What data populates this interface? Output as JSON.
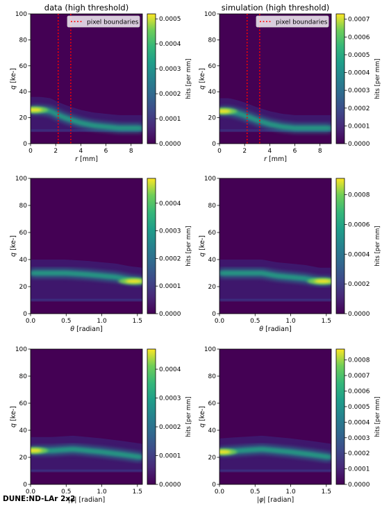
{
  "footer": "DUNE:ND-LAr 2x2",
  "colors": {
    "background": "#440154",
    "boundary": "#ff0000"
  },
  "legend_label": "pixel boundaries",
  "chart_data": [
    {
      "type": "heatmap",
      "title": "data (high threshold)",
      "xlabel": "r [mm]",
      "ylabel": "q [ke-]",
      "xlim": [
        0,
        8.9
      ],
      "ylim": [
        0,
        100
      ],
      "xticks": [
        "0",
        "2",
        "4",
        "6",
        "8"
      ],
      "xtick_values": [
        0,
        2,
        4,
        6,
        8
      ],
      "yticks": [
        "0",
        "20",
        "40",
        "60",
        "80",
        "100"
      ],
      "ytick_values": [
        0,
        20,
        40,
        60,
        80,
        100
      ],
      "colorbar": {
        "label": "hits [per mm]",
        "max": 0.00052,
        "ticks": [
          "0.0000",
          "0.0001",
          "0.0002",
          "0.0003",
          "0.0004",
          "0.0005"
        ],
        "tick_values": [
          0,
          0.0001,
          0.0002,
          0.0003,
          0.0004,
          0.0005
        ]
      },
      "pixel_boundaries": [
        2.2,
        3.2
      ],
      "legend": "pixel boundaries",
      "ridge": [
        [
          0,
          26
        ],
        [
          0.8,
          26
        ],
        [
          1.6,
          25
        ],
        [
          2.2,
          22
        ],
        [
          3.0,
          19
        ],
        [
          4.0,
          16
        ],
        [
          5.0,
          14
        ],
        [
          6.0,
          13
        ],
        [
          7.0,
          12
        ],
        [
          8.0,
          12
        ],
        [
          8.9,
          12
        ]
      ],
      "peak": [
        0.3,
        26
      ]
    },
    {
      "type": "heatmap",
      "title": "simulation (high threshold)",
      "xlabel": "r [mm]",
      "ylabel": "q [ke-]",
      "xlim": [
        0,
        8.9
      ],
      "ylim": [
        0,
        100
      ],
      "xticks": [
        "0",
        "2",
        "4",
        "6",
        "8"
      ],
      "xtick_values": [
        0,
        2,
        4,
        6,
        8
      ],
      "yticks": [
        "0",
        "20",
        "40",
        "60",
        "80",
        "100"
      ],
      "ytick_values": [
        0,
        20,
        40,
        60,
        80,
        100
      ],
      "colorbar": {
        "label": "hits [per mm]",
        "max": 0.00073,
        "ticks": [
          "0.0000",
          "0.0001",
          "0.0002",
          "0.0003",
          "0.0004",
          "0.0005",
          "0.0006",
          "0.0007"
        ],
        "tick_values": [
          0,
          0.0001,
          0.0002,
          0.0003,
          0.0004,
          0.0005,
          0.0006,
          0.0007
        ]
      },
      "pixel_boundaries": [
        2.2,
        3.2
      ],
      "legend": "pixel boundaries",
      "ridge": [
        [
          0,
          25
        ],
        [
          0.8,
          25
        ],
        [
          1.6,
          23
        ],
        [
          2.2,
          21
        ],
        [
          3.0,
          18
        ],
        [
          4.0,
          15
        ],
        [
          5.0,
          13
        ],
        [
          6.0,
          12
        ],
        [
          7.0,
          12
        ],
        [
          8.0,
          12
        ],
        [
          8.9,
          12
        ]
      ],
      "peak": [
        0.3,
        25
      ]
    },
    {
      "type": "heatmap",
      "title": "",
      "xlabel": "θ [radian]",
      "ylabel": "q [ke-]",
      "xlim": [
        0,
        1.57
      ],
      "ylim": [
        0,
        100
      ],
      "xticks": [
        "0.0",
        "0.5",
        "1.0",
        "1.5"
      ],
      "xtick_values": [
        0,
        0.5,
        1.0,
        1.5
      ],
      "yticks": [
        "0",
        "20",
        "40",
        "60",
        "80",
        "100"
      ],
      "ytick_values": [
        0,
        20,
        40,
        60,
        80,
        100
      ],
      "colorbar": {
        "label": "hits [per mm]",
        "max": 0.00049,
        "ticks": [
          "0.0000",
          "0.0001",
          "0.0002",
          "0.0003",
          "0.0004"
        ],
        "tick_values": [
          0,
          0.0001,
          0.0002,
          0.0003,
          0.0004
        ]
      },
      "ridge": [
        [
          0,
          30
        ],
        [
          0.5,
          30
        ],
        [
          0.8,
          29
        ],
        [
          1.0,
          28
        ],
        [
          1.2,
          27
        ],
        [
          1.4,
          25
        ],
        [
          1.57,
          24
        ]
      ],
      "peak": [
        1.45,
        24
      ]
    },
    {
      "type": "heatmap",
      "title": "",
      "xlabel": "θ [radian]",
      "ylabel": "q [ke-]",
      "xlim": [
        0,
        1.57
      ],
      "ylim": [
        0,
        100
      ],
      "xticks": [
        "0.0",
        "0.5",
        "1.0",
        "1.5"
      ],
      "xtick_values": [
        0,
        0.5,
        1.0,
        1.5
      ],
      "yticks": [
        "0",
        "20",
        "40",
        "60",
        "80",
        "100"
      ],
      "ytick_values": [
        0,
        20,
        40,
        60,
        80,
        100
      ],
      "colorbar": {
        "label": "hits [per mm]",
        "max": 0.00091,
        "ticks": [
          "0.0000",
          "0.0002",
          "0.0004",
          "0.0006",
          "0.0008"
        ],
        "tick_values": [
          0,
          0.0002,
          0.0004,
          0.0006,
          0.0008
        ]
      },
      "ridge": [
        [
          0,
          30
        ],
        [
          0.6,
          30
        ],
        [
          0.8,
          28
        ],
        [
          1.0,
          27
        ],
        [
          1.2,
          26
        ],
        [
          1.4,
          24
        ],
        [
          1.57,
          24
        ]
      ],
      "peak": [
        1.45,
        24
      ]
    },
    {
      "type": "heatmap",
      "title": "",
      "xlabel": "|φ| [radian]",
      "ylabel": "q [ke-]",
      "xlim": [
        0,
        1.57
      ],
      "ylim": [
        0,
        100
      ],
      "xticks": [
        "0.0",
        "0.5",
        "1.0",
        "1.5"
      ],
      "xtick_values": [
        0,
        0.5,
        1.0,
        1.5
      ],
      "yticks": [
        "0",
        "20",
        "40",
        "60",
        "80",
        "100"
      ],
      "ytick_values": [
        0,
        20,
        40,
        60,
        80,
        100
      ],
      "colorbar": {
        "label": "hits [per mm]",
        "max": 0.00047,
        "ticks": [
          "0.0000",
          "0.0001",
          "0.0002",
          "0.0003",
          "0.0004"
        ],
        "tick_values": [
          0,
          0.0001,
          0.0002,
          0.0003,
          0.0004
        ]
      },
      "ridge": [
        [
          0,
          25
        ],
        [
          0.3,
          25
        ],
        [
          0.6,
          26
        ],
        [
          0.8,
          25
        ],
        [
          1.0,
          24
        ],
        [
          1.3,
          22
        ],
        [
          1.57,
          20
        ]
      ],
      "peak": [
        0.05,
        25
      ]
    },
    {
      "type": "heatmap",
      "title": "",
      "xlabel": "|φ| [radian]",
      "ylabel": "q [ke-]",
      "xlim": [
        0,
        1.57
      ],
      "ylim": [
        0,
        100
      ],
      "xticks": [
        "0.0",
        "0.5",
        "1.0",
        "1.5"
      ],
      "xtick_values": [
        0,
        0.5,
        1.0,
        1.5
      ],
      "yticks": [
        "0",
        "20",
        "40",
        "60",
        "80",
        "100"
      ],
      "ytick_values": [
        0,
        20,
        40,
        60,
        80,
        100
      ],
      "colorbar": {
        "label": "hits [per mm]",
        "max": 0.00087,
        "ticks": [
          "0.0000",
          "0.0001",
          "0.0002",
          "0.0003",
          "0.0004",
          "0.0005",
          "0.0006",
          "0.0007",
          "0.0008"
        ],
        "tick_values": [
          0,
          0.0001,
          0.0002,
          0.0003,
          0.0004,
          0.0005,
          0.0006,
          0.0007,
          0.0008
        ]
      },
      "ridge": [
        [
          0,
          24
        ],
        [
          0.3,
          25
        ],
        [
          0.6,
          26
        ],
        [
          0.8,
          25
        ],
        [
          1.0,
          24
        ],
        [
          1.3,
          22
        ],
        [
          1.57,
          20
        ]
      ],
      "peak": [
        0.05,
        24
      ]
    }
  ]
}
